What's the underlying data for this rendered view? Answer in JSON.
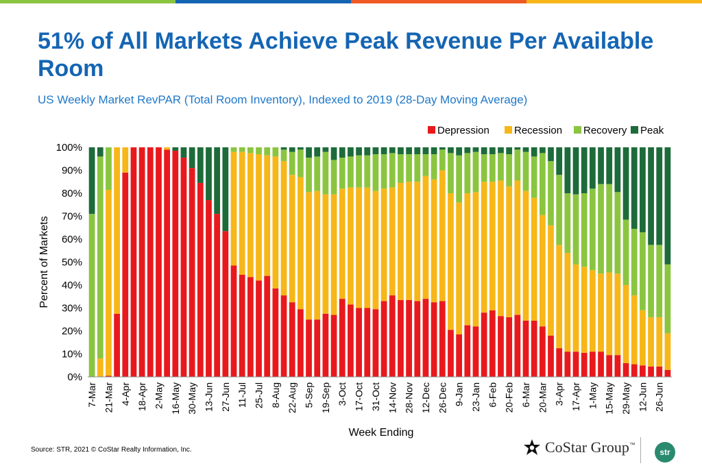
{
  "header": {
    "title": "51% of All Markets Achieve Peak Revenue Per Available Room",
    "subtitle": "US Weekly Market RevPAR (Total Room Inventory), Indexed to 2019 (28-Day Moving Average)",
    "bar_colors": [
      "#8bc540",
      "#1565b3",
      "#ef5a24",
      "#f7b719"
    ]
  },
  "footer": {
    "source": "Source: STR, 2021 © CoStar Realty Information, Inc.",
    "costar_name": "CoStar Group",
    "costar_tm": "™",
    "str_logo": "str"
  },
  "chart_data": {
    "type": "bar",
    "stacked": true,
    "title": "US Weekly Market RevPAR (Total Room Inventory), Indexed to 2019 (28-Day Moving Average)",
    "xlabel": "Week Ending",
    "ylabel": "Percent of Markets",
    "ylim": [
      0,
      100
    ],
    "y_ticks": [
      "0%",
      "10%",
      "20%",
      "30%",
      "40%",
      "50%",
      "60%",
      "70%",
      "80%",
      "90%",
      "100%"
    ],
    "legend_position": "top-right",
    "x_tick_labels": [
      "7-Mar",
      "21-Mar",
      "4-Apr",
      "18-Apr",
      "2-May",
      "16-May",
      "30-May",
      "13-Jun",
      "27-Jun",
      "11-Jul",
      "25-Jul",
      "8-Aug",
      "22-Aug",
      "5-Sep",
      "19-Sep",
      "3-Oct",
      "17-Oct",
      "31-Oct",
      "14-Nov",
      "28-Nov",
      "12-Dec",
      "26-Dec",
      "9-Jan",
      "23-Jan",
      "6-Feb",
      "20-Feb",
      "6-Mar",
      "20-Mar",
      "3-Apr",
      "17-Apr",
      "1-May",
      "15-May",
      "29-May",
      "12-Jun",
      "26-Jun"
    ],
    "categories": [
      "7-Mar",
      "14-Mar",
      "21-Mar",
      "28-Mar",
      "4-Apr",
      "11-Apr",
      "18-Apr",
      "25-Apr",
      "2-May",
      "9-May",
      "16-May",
      "23-May",
      "30-May",
      "6-Jun",
      "13-Jun",
      "20-Jun",
      "27-Jun",
      "4-Jul",
      "11-Jul",
      "18-Jul",
      "25-Jul",
      "1-Aug",
      "8-Aug",
      "15-Aug",
      "22-Aug",
      "29-Aug",
      "5-Sep",
      "12-Sep",
      "19-Sep",
      "26-Sep",
      "3-Oct",
      "10-Oct",
      "17-Oct",
      "24-Oct",
      "31-Oct",
      "7-Nov",
      "14-Nov",
      "21-Nov",
      "28-Nov",
      "5-Dec",
      "12-Dec",
      "19-Dec",
      "26-Dec",
      "2-Jan",
      "9-Jan",
      "16-Jan",
      "23-Jan",
      "30-Jan",
      "6-Feb",
      "13-Feb",
      "20-Feb",
      "27-Feb",
      "6-Mar",
      "13-Mar",
      "20-Mar",
      "27-Mar",
      "3-Apr",
      "10-Apr",
      "17-Apr",
      "24-Apr",
      "1-May",
      "8-May",
      "15-May",
      "22-May",
      "29-May",
      "5-Jun",
      "12-Jun",
      "19-Jun",
      "26-Jun",
      "3-Jul"
    ],
    "series": [
      {
        "name": "Depression",
        "color": "#e8191d",
        "values": [
          0,
          0,
          0.5,
          27.5,
          89,
          100,
          100,
          100,
          100,
          99,
          98.5,
          95.5,
          91,
          84.5,
          77,
          71,
          63.5,
          48.5,
          44.5,
          43.5,
          42,
          44,
          38.5,
          35.5,
          32.5,
          29.5,
          25,
          25,
          27.5,
          27,
          34,
          31.5,
          30,
          30,
          29.5,
          33,
          35.5,
          33.5,
          33.5,
          33,
          34,
          32.5,
          33,
          20.5,
          18.5,
          22.5,
          22,
          28,
          29,
          26.5,
          26,
          27,
          24.5,
          24.5,
          22,
          18,
          12.5,
          11,
          11,
          10.5,
          11,
          11,
          9.5,
          9.5,
          6,
          5.5,
          5,
          4.5,
          4.5,
          3
        ]
      },
      {
        "name": "Recession",
        "color": "#f7b719",
        "values": [
          0,
          8,
          81,
          72.5,
          11,
          0,
          0,
          0,
          0,
          1,
          0,
          0,
          0,
          0,
          0,
          0,
          0,
          49.5,
          53.5,
          54,
          55,
          52.5,
          57.5,
          58.5,
          55.5,
          57.5,
          55.5,
          56,
          52,
          52.5,
          48,
          51,
          52.5,
          52.5,
          51.5,
          49,
          47,
          51,
          51.5,
          52,
          53.5,
          53.5,
          57,
          59.5,
          57.5,
          57.5,
          58.5,
          57,
          56,
          59,
          57,
          58.5,
          56.5,
          53.5,
          48.5,
          48,
          45,
          43,
          38,
          37.5,
          35.5,
          34,
          36,
          35.5,
          34,
          30,
          24,
          21.5,
          21.5,
          16
        ]
      },
      {
        "name": "Recovery",
        "color": "#8bc540",
        "values": [
          71,
          88,
          18.5,
          0,
          0,
          0,
          0,
          0,
          0,
          0,
          0,
          0,
          0,
          0,
          0,
          0,
          0,
          2,
          2,
          2.5,
          3,
          3.5,
          4,
          5,
          10,
          12,
          15,
          15,
          18.5,
          15,
          13.5,
          13.5,
          14,
          14,
          16,
          15,
          15,
          12.5,
          12,
          12,
          9.5,
          11,
          9,
          17.5,
          20.5,
          17.5,
          17.5,
          12,
          12,
          12,
          14,
          13.5,
          17,
          18,
          27,
          28,
          30.5,
          26,
          30.5,
          32,
          35.5,
          39,
          38.5,
          35.5,
          28.5,
          29,
          34,
          31.5,
          31.5,
          30
        ]
      },
      {
        "name": "Peak",
        "color": "#1d6b3a",
        "values": [
          29,
          4,
          0,
          0,
          0,
          0,
          0,
          0,
          0,
          0,
          1.5,
          4.5,
          9,
          15.5,
          23,
          29,
          36.5,
          0,
          0,
          0,
          0,
          0,
          0,
          1,
          2,
          1,
          4.5,
          4,
          2,
          5.5,
          4.5,
          4,
          3.5,
          3.5,
          3,
          3,
          2.5,
          3,
          3,
          3,
          3,
          3,
          1,
          2.5,
          3.5,
          2.5,
          2,
          3,
          3,
          2.5,
          3,
          1,
          2,
          4,
          2.5,
          6,
          12,
          20,
          20.5,
          20,
          18,
          16,
          16,
          19.5,
          31.5,
          35.5,
          37,
          42.5,
          42.5,
          51
        ]
      }
    ]
  }
}
